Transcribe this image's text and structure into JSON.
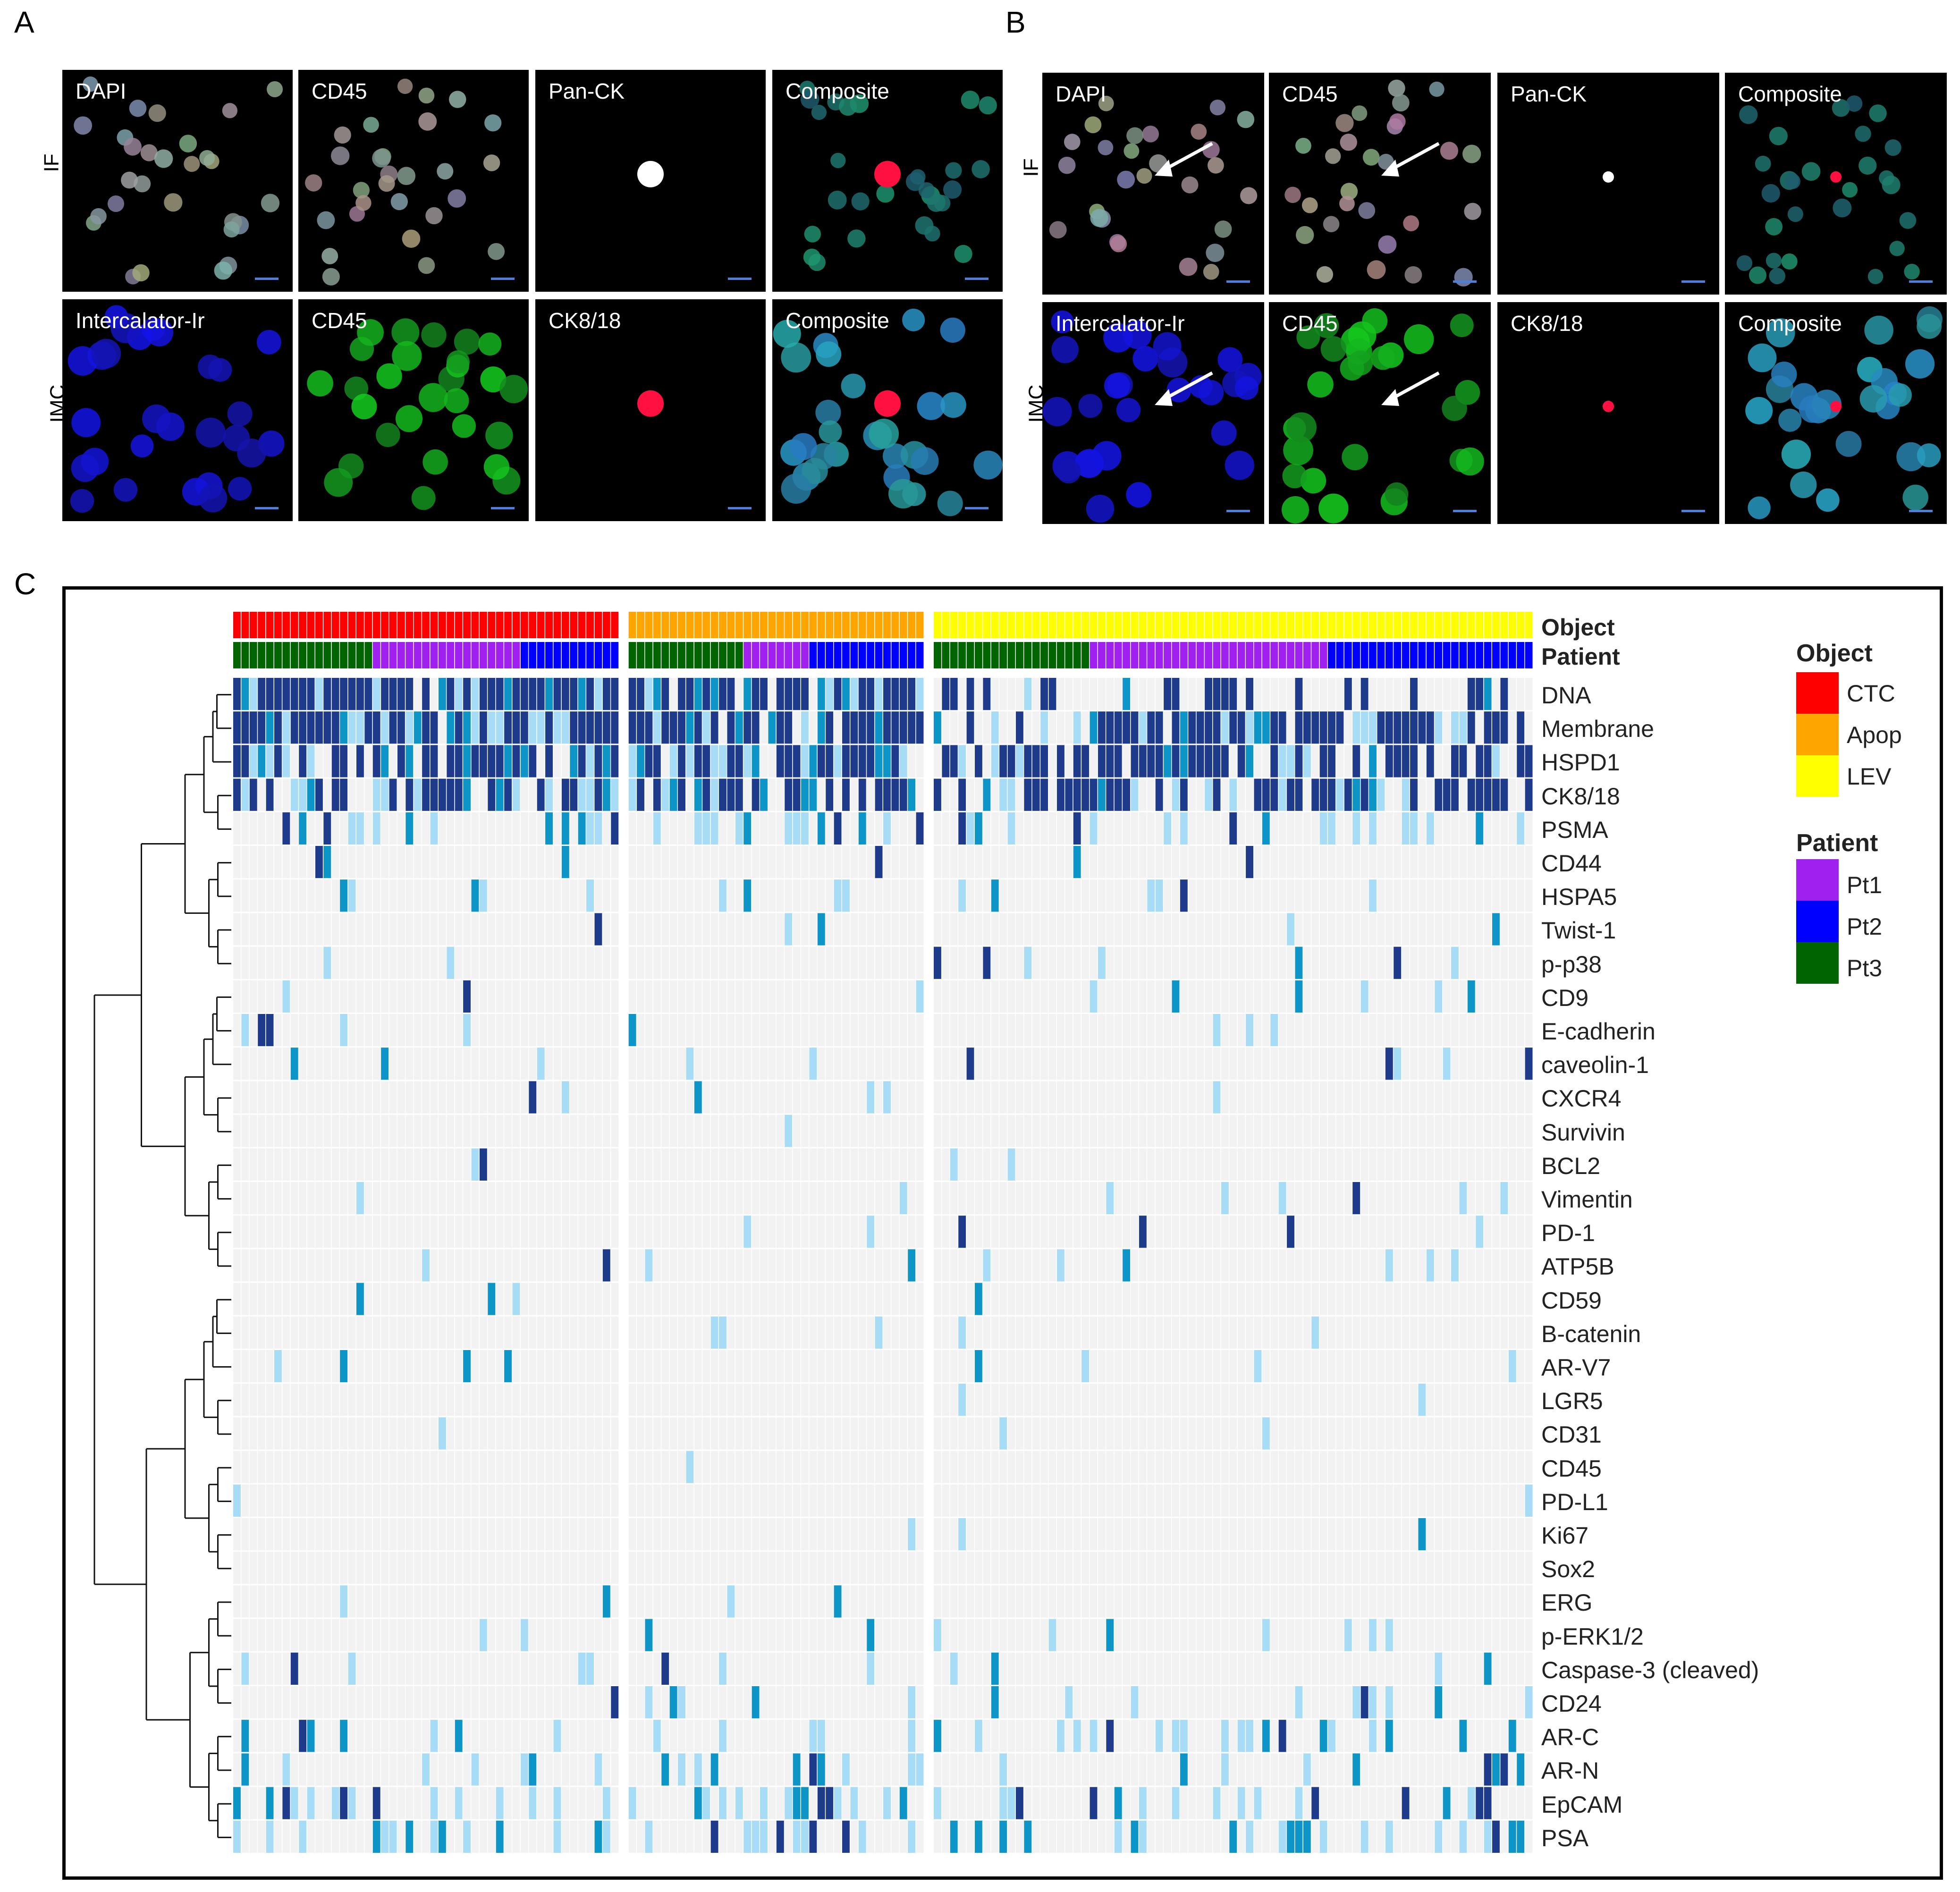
{
  "panels": {
    "A": {
      "letter": "A",
      "row_labels": [
        "IF",
        "IMC"
      ],
      "tiles": [
        [
          "DAPI",
          "CD45",
          "Pan-CK",
          "Composite"
        ],
        [
          "Intercalator-Ir",
          "CD45",
          "CK8/18",
          "Composite"
        ]
      ]
    },
    "B": {
      "letter": "B",
      "row_labels": [
        "IF",
        "IMC"
      ],
      "tiles": [
        [
          "DAPI",
          "CD45",
          "Pan-CK",
          "Composite"
        ],
        [
          "Intercalator-Ir",
          "CD45",
          "CK8/18",
          "Composite"
        ]
      ]
    },
    "C": {
      "letter": "C"
    }
  },
  "chart_data": {
    "type": "heatmap",
    "annotation_rows": [
      "Object",
      "Patient"
    ],
    "markers": [
      "DNA",
      "Membrane",
      "HSPD1",
      "CK8/18",
      "PSMA",
      "CD44",
      "HSPA5",
      "Twist-1",
      "p-p38",
      "CD9",
      "E-cadherin",
      "caveolin-1",
      "CXCR4",
      "Survivin",
      "BCL2",
      "Vimentin",
      "PD-1",
      "ATP5B",
      "CD59",
      "B-catenin",
      "AR-V7",
      "LGR5",
      "CD31",
      "CD45",
      "PD-L1",
      "Ki67",
      "Sox2",
      "ERG",
      "p-ERK1/2",
      "Caspase-3 (cleaved)",
      "CD24",
      "AR-C",
      "AR-N",
      "EpCAM",
      "PSA"
    ],
    "object_groups": [
      {
        "name": "CTC",
        "n_columns": 47,
        "patients": [
          {
            "name": "Pt3",
            "n": 17
          },
          {
            "name": "Pt1",
            "n": 18
          },
          {
            "name": "Pt2",
            "n": 12
          }
        ]
      },
      {
        "name": "Apop",
        "n_columns": 36,
        "patients": [
          {
            "name": "Pt3",
            "n": 14
          },
          {
            "name": "Pt1",
            "n": 8
          },
          {
            "name": "Pt2",
            "n": 14
          }
        ]
      },
      {
        "name": "LEV",
        "n_columns": 73,
        "patients": [
          {
            "name": "Pt3",
            "n": 19
          },
          {
            "name": "Pt1",
            "n": 29
          },
          {
            "name": "Pt2",
            "n": 25
          }
        ]
      }
    ],
    "legend": {
      "object_title": "Object",
      "object_items": [
        {
          "name": "CTC",
          "color": "#ff0000"
        },
        {
          "name": "Apop",
          "color": "#ffa500"
        },
        {
          "name": "LEV",
          "color": "#ffff00"
        }
      ],
      "patient_title": "Patient",
      "patient_items": [
        {
          "name": "Pt1",
          "color": "#a020f0"
        },
        {
          "name": "Pt2",
          "color": "#0000ff"
        },
        {
          "name": "Pt3",
          "color": "#006400"
        }
      ]
    },
    "marker_positive_fraction": [
      0.92,
      0.85,
      0.75,
      0.65,
      0.22,
      0.03,
      0.1,
      0.06,
      0.05,
      0.06,
      0.06,
      0.06,
      0.03,
      0.02,
      0.03,
      0.05,
      0.05,
      0.07,
      0.04,
      0.04,
      0.03,
      0.01,
      0.01,
      0.01,
      0.02,
      0.02,
      0.02,
      0.04,
      0.05,
      0.1,
      0.06,
      0.25,
      0.18,
      0.3,
      0.3
    ],
    "colors": {
      "absent": "#f2f2f2",
      "low": "#a6dcf5",
      "mid": "#0e95c8",
      "high": "#1e3a8a"
    },
    "dendrogram": true
  }
}
